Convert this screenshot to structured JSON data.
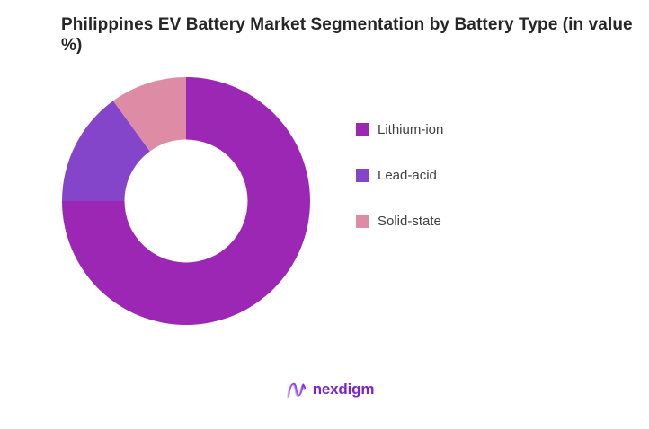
{
  "page": {
    "background": "#ffffff"
  },
  "chart_data": {
    "type": "pie",
    "subtype": "donut",
    "title": "Philippines EV Battery Market Segmentation by Battery Type (in value %)",
    "categories": [
      "Lithium-ion",
      "Lead-acid",
      "Solid-state"
    ],
    "values": [
      75,
      15,
      10
    ],
    "unit": "value %",
    "colors": [
      "#9B27B4",
      "#8545CB",
      "#DE8CA5"
    ],
    "donut_hole_ratio": 0.5,
    "start_angle_deg": 0,
    "direction": "clockwise",
    "legend_position": "right",
    "data_labels": "none",
    "background": "#ffffff"
  },
  "legend": {
    "items": [
      {
        "label": "Lithium-ion",
        "color": "#9B27B4"
      },
      {
        "label": "Lead-acid",
        "color": "#8545CB"
      },
      {
        "label": "Solid-state",
        "color": "#DE8CA5"
      }
    ]
  },
  "footer": {
    "brand": "nexdigm",
    "logo_icon": "nexdigm-wave-icon",
    "brand_color": "#7B24CE",
    "logo_gradient": [
      "#B578F0",
      "#7A2BD9"
    ]
  }
}
